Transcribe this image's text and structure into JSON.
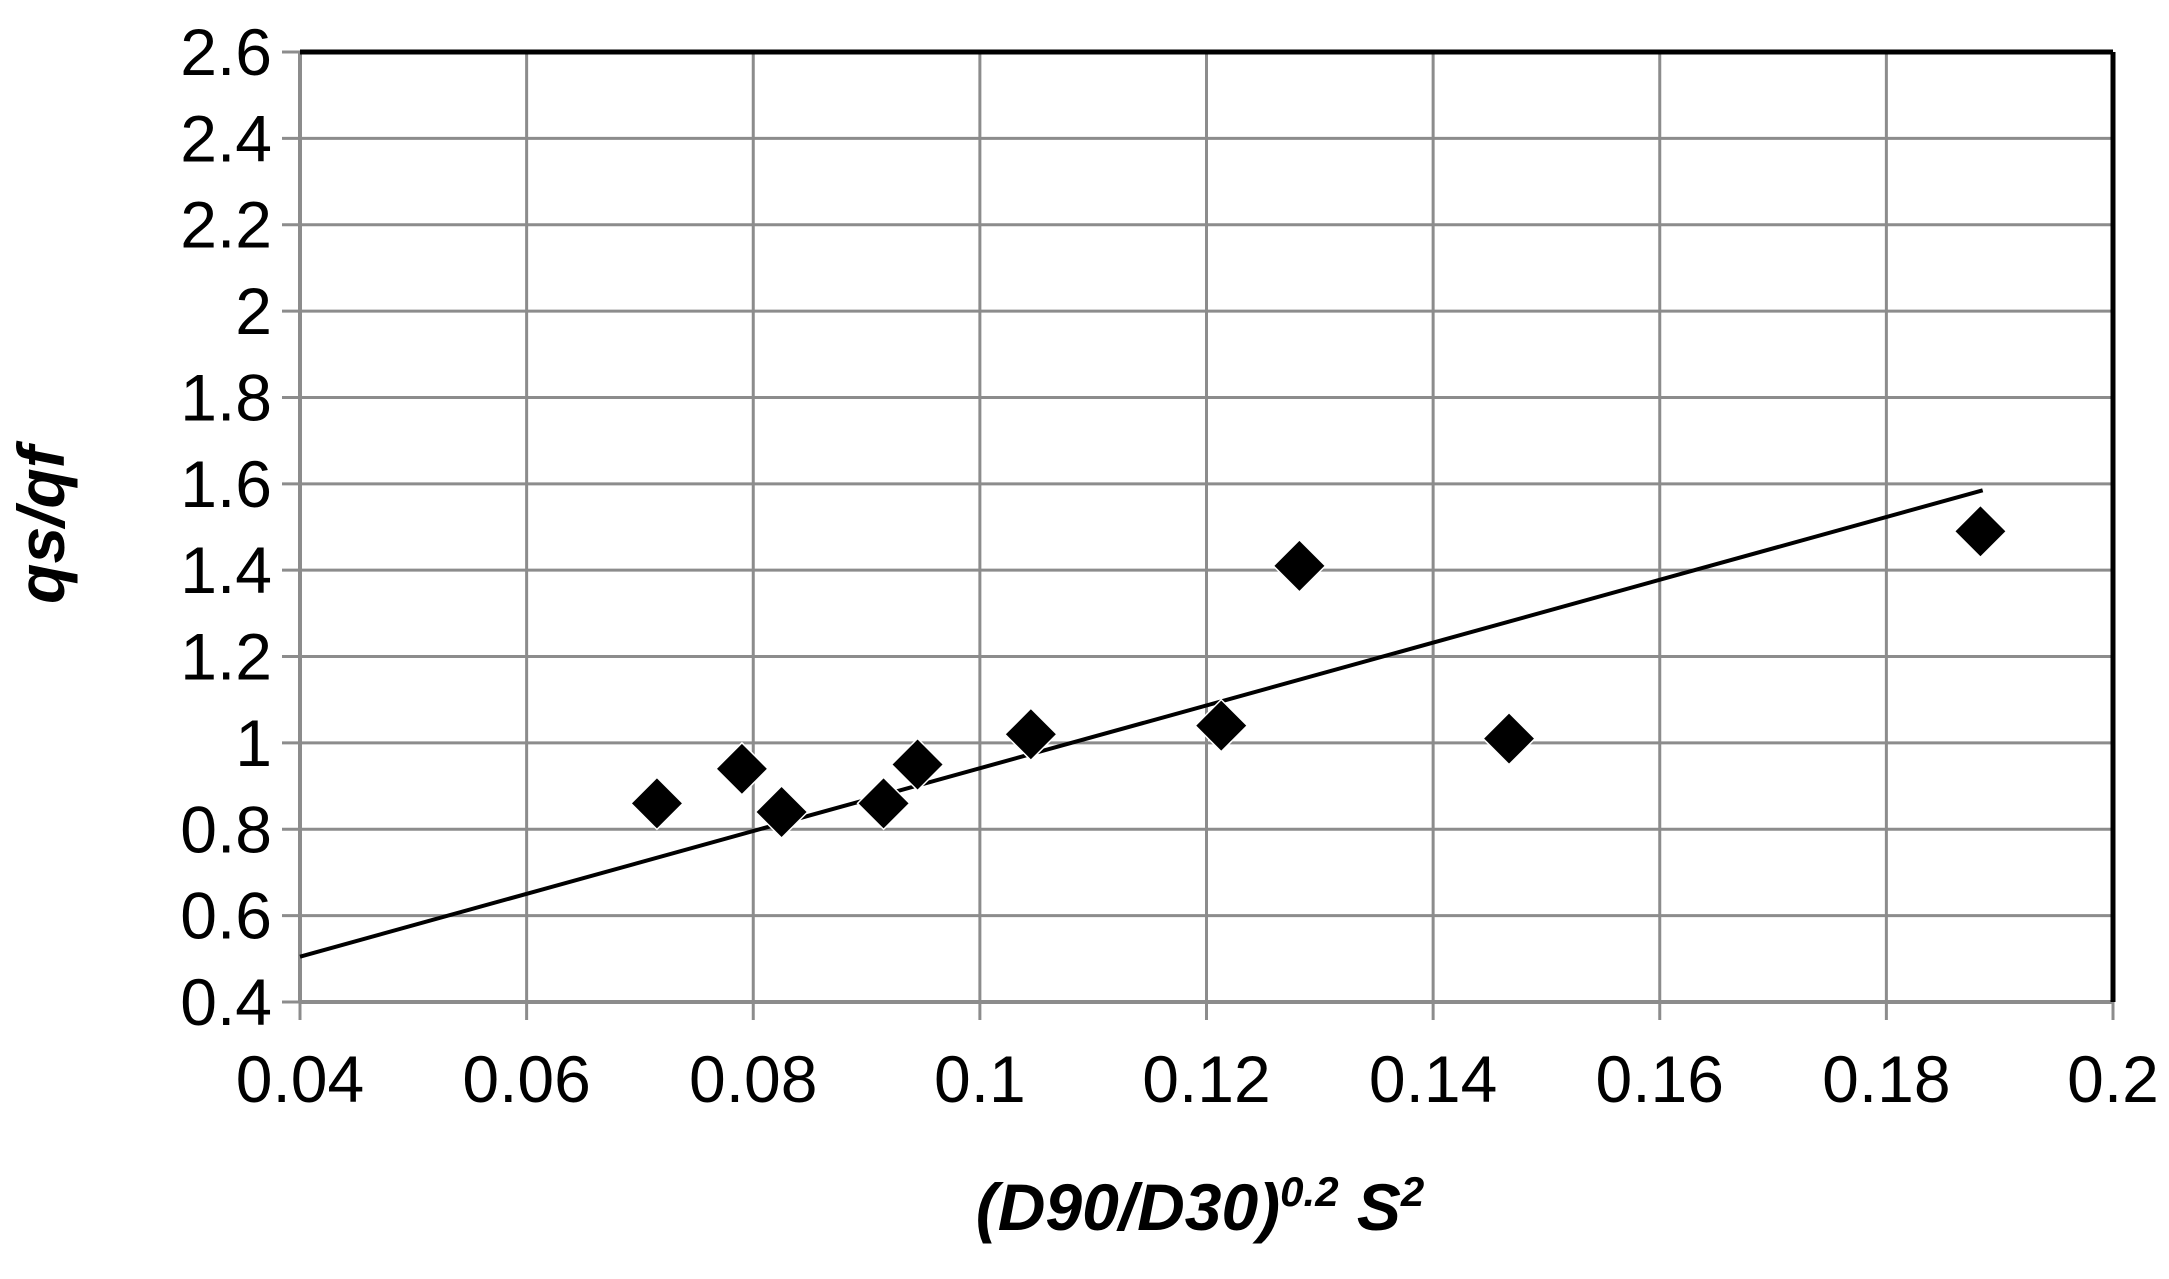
{
  "chart_data": {
    "type": "scatter",
    "title": "",
    "xlabel": {
      "base": "(D90/D30)",
      "exponent": "0.2",
      "tail": " S",
      "tail_exponent": "2"
    },
    "ylabel": "qs/qf",
    "xlim": [
      0.04,
      0.2
    ],
    "ylim": [
      0.4,
      2.6
    ],
    "x_ticks": [
      "0.04",
      "0.06",
      "0.08",
      "0.1",
      "0.12",
      "0.14",
      "0.16",
      "0.18",
      "0.2"
    ],
    "x_tick_values": [
      0.04,
      0.06,
      0.08,
      0.1,
      0.12,
      0.14,
      0.16,
      0.18,
      0.2
    ],
    "y_ticks": [
      "0.4",
      "0.6",
      "0.8",
      "1",
      "1.2",
      "1.4",
      "1.6",
      "1.8",
      "2",
      "2.2",
      "2.4",
      "2.6"
    ],
    "y_tick_values": [
      0.4,
      0.6,
      0.8,
      1.0,
      1.2,
      1.4,
      1.6,
      1.8,
      2.0,
      2.2,
      2.4,
      2.6
    ],
    "grid": true,
    "series": [
      {
        "marker": "diamond",
        "color": "#000000",
        "points": [
          {
            "x": 0.0715,
            "y": 0.86
          },
          {
            "x": 0.079,
            "y": 0.94
          },
          {
            "x": 0.0825,
            "y": 0.84
          },
          {
            "x": 0.0915,
            "y": 0.86
          },
          {
            "x": 0.0945,
            "y": 0.95
          },
          {
            "x": 0.1045,
            "y": 1.02
          },
          {
            "x": 0.1213,
            "y": 1.04
          },
          {
            "x": 0.1282,
            "y": 1.41
          },
          {
            "x": 0.1467,
            "y": 1.01
          },
          {
            "x": 0.1883,
            "y": 1.49
          }
        ]
      }
    ],
    "trendline": {
      "type": "linear",
      "color": "#000000",
      "from": {
        "x": 0.04,
        "y": 0.505
      },
      "to": {
        "x": 0.1885,
        "y": 1.585
      }
    }
  }
}
